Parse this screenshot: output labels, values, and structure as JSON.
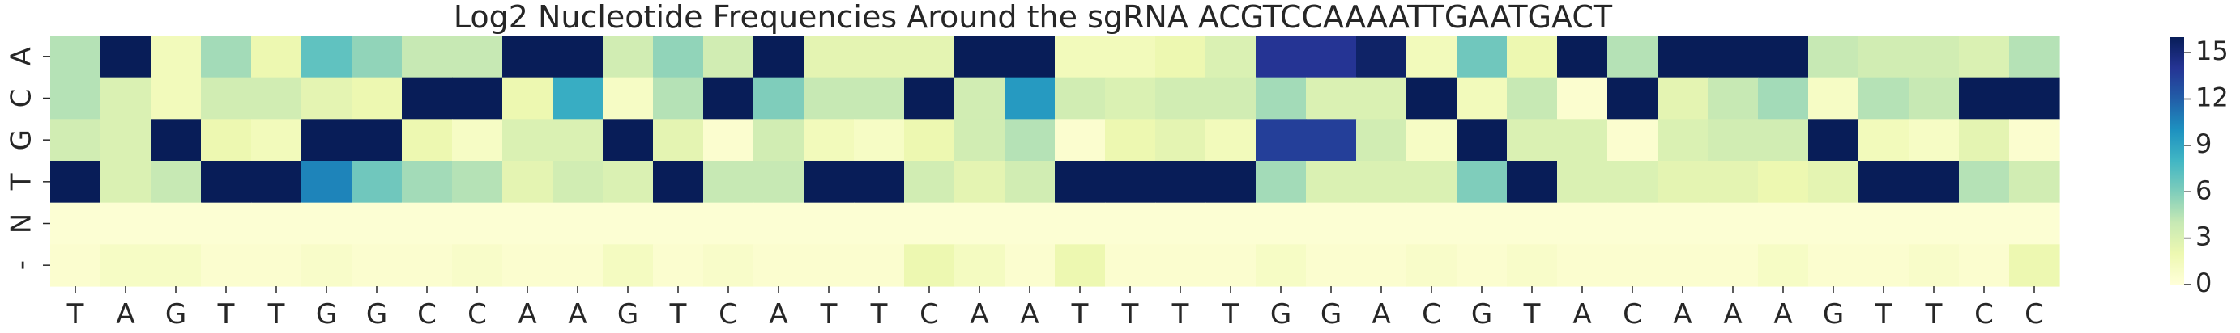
{
  "chart_data": {
    "type": "heatmap",
    "title": "Log2 Nucleotide Frequencies Around the sgRNA ACGTCCAAAATTGAATGACT",
    "xlabel": "",
    "ylabel": "",
    "rows": [
      "A",
      "C",
      "G",
      "T",
      "N",
      "-"
    ],
    "columns": [
      "T",
      "A",
      "G",
      "T",
      "T",
      "G",
      "G",
      "C",
      "C",
      "A",
      "A",
      "G",
      "T",
      "C",
      "A",
      "T",
      "T",
      "C",
      "A",
      "A",
      "T",
      "T",
      "T",
      "T",
      "G",
      "G",
      "A",
      "C",
      "G",
      "T",
      "A",
      "C",
      "A",
      "A",
      "A",
      "G",
      "T",
      "T",
      "C",
      "C"
    ],
    "values": [
      [
        4.5,
        16,
        1.5,
        5,
        2,
        7,
        5.5,
        4,
        4,
        16,
        16,
        3.5,
        5.5,
        3.5,
        16,
        2.5,
        2.5,
        2.5,
        16,
        16,
        1.5,
        1.5,
        2,
        3,
        14,
        14,
        15.5,
        1.5,
        6.5,
        2,
        16,
        4.5,
        16,
        16,
        16,
        4,
        3.5,
        3.5,
        3,
        4.5
      ],
      [
        4.5,
        3,
        1.5,
        3.5,
        3.5,
        2.5,
        2,
        16,
        16,
        2,
        8.5,
        1,
        4.5,
        16,
        6,
        4,
        4,
        16,
        3.5,
        9.5,
        3.5,
        3,
        3.5,
        3.5,
        5,
        3,
        3,
        16,
        1.5,
        4,
        0.5,
        16,
        2.5,
        4,
        5,
        1,
        4.5,
        4,
        16,
        16
      ],
      [
        3.5,
        3,
        16,
        2,
        1.5,
        16,
        16,
        2,
        1,
        3,
        3,
        16,
        2.5,
        0.5,
        3.5,
        1.5,
        1,
        2,
        3.5,
        4.5,
        0.5,
        2,
        2.5,
        1.5,
        13.5,
        13.5,
        3.5,
        1,
        16,
        3,
        3,
        0.5,
        3,
        3.5,
        3.5,
        16,
        1.5,
        1,
        2.5,
        0.5
      ],
      [
        16,
        3,
        4,
        16,
        16,
        10.5,
        6.5,
        5,
        4.5,
        2.5,
        3.5,
        3,
        16,
        4,
        4,
        16,
        16,
        3.5,
        2.5,
        3.5,
        16,
        16,
        16,
        16,
        5,
        3,
        3,
        3,
        6,
        16,
        3,
        3,
        2.5,
        2.5,
        2,
        2.5,
        16,
        16,
        4.5,
        3.5
      ],
      [
        0.3,
        0.3,
        0.3,
        0.3,
        0.3,
        0.3,
        0.3,
        0.3,
        0.3,
        0.3,
        0.3,
        0.3,
        0.3,
        0.3,
        0.3,
        0.3,
        0.3,
        0.3,
        0.3,
        0.3,
        0.3,
        0.3,
        0.3,
        0.3,
        0.3,
        0.3,
        0.3,
        0.3,
        0.3,
        0.3,
        0.3,
        0.3,
        0.3,
        0.3,
        0.3,
        0.3,
        0.3,
        0.3,
        0.3,
        0.3
      ],
      [
        0.5,
        1,
        1,
        0.5,
        0.5,
        0.8,
        0.5,
        0.5,
        0.8,
        0.5,
        0.5,
        1.2,
        0.5,
        0.8,
        0.5,
        0.5,
        0.5,
        2,
        1.2,
        0.5,
        2,
        0.5,
        0.5,
        0.5,
        1,
        0.5,
        0.5,
        0.8,
        0.5,
        0.8,
        0.5,
        0.5,
        0.5,
        0.5,
        1,
        0.5,
        0.5,
        0.8,
        0.5,
        2
      ]
    ],
    "vmin": 0,
    "vmax": 16,
    "colormap": [
      "#ffffd9",
      "#edf8b1",
      "#c7e9b4",
      "#7fcdbb",
      "#41b6c4",
      "#1d91c0",
      "#225ea8",
      "#253494",
      "#081d58"
    ],
    "colorbar_ticks": [
      0,
      3,
      6,
      9,
      12,
      15
    ],
    "grid": false
  }
}
